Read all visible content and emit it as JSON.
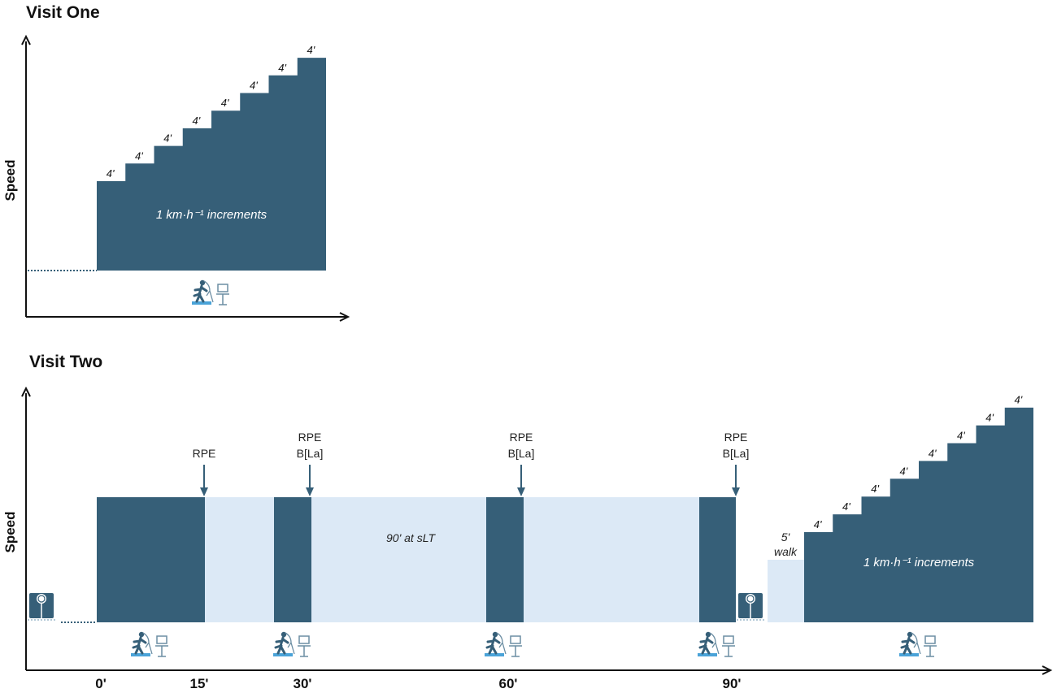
{
  "colors": {
    "work": "#365f78",
    "light": "#dce9f6",
    "axis": "#111111",
    "icon_accent": "#4aa3d8"
  },
  "visit_one": {
    "title": "Visit One",
    "ylabel": "Speed",
    "step_label": "4'",
    "steps": 8,
    "increments_label": "1 km·h⁻¹ increments",
    "icons": [
      "runner-treadmill-icon"
    ]
  },
  "visit_two": {
    "title": "Visit Two",
    "ylabel": "Speed",
    "step_label": "4'",
    "steps": 8,
    "increments_label": "1 km·h⁻¹ increments",
    "main_label": "90' at sLT",
    "walk_label": [
      "5'",
      "walk"
    ],
    "markers": [
      {
        "lines": [
          "RPE"
        ]
      },
      {
        "lines": [
          "RPE",
          "B[La]"
        ]
      },
      {
        "lines": [
          "RPE",
          "B[La]"
        ]
      },
      {
        "lines": [
          "RPE",
          "B[La]"
        ]
      }
    ],
    "x_ticks": [
      "0'",
      "15'",
      "30'",
      "60'",
      "90'"
    ],
    "icons": [
      "scale-icon",
      "runner-treadmill-icon"
    ]
  }
}
